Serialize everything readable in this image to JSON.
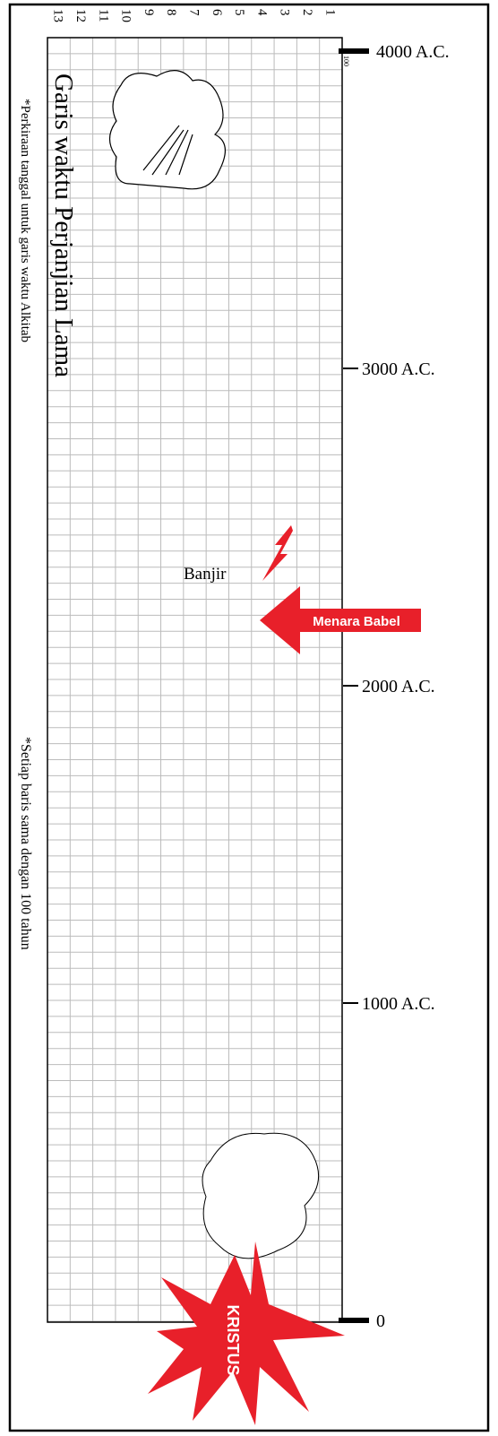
{
  "title": "Garis waktu Perjanjian Lama",
  "notes": [
    "*Perkiraan tanggal untuk garis waktu Alkitab",
    "*Setiap baris sama dengan 100 tahun"
  ],
  "columns": [
    "1",
    "2",
    "3",
    "4",
    "5",
    "6",
    "7",
    "8",
    "9",
    "10",
    "11",
    "12",
    "13"
  ],
  "row_unit": "100",
  "axis": {
    "ticks": [
      {
        "value": 4000,
        "label": "4000 A.C."
      },
      {
        "value": 3000,
        "label": "3000 A.C."
      },
      {
        "value": 2000,
        "label": "2000 A.C."
      },
      {
        "value": 1000,
        "label": "1000 A.C."
      },
      {
        "value": 0,
        "label": "0"
      }
    ]
  },
  "events": {
    "flood": "Banjir",
    "babel": "Menara Babel",
    "christ": "KRISTUS"
  }
}
